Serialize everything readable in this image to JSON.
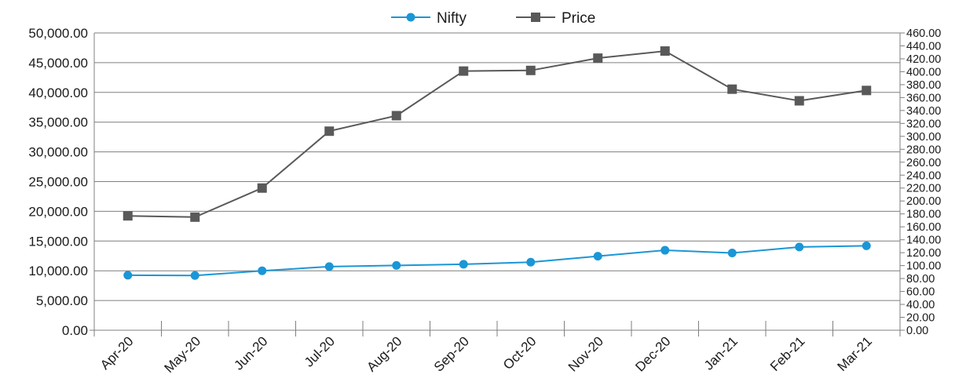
{
  "chart_data": {
    "type": "line",
    "categories": [
      "Apr-20",
      "May-20",
      "Jun-20",
      "Jul-20",
      "Aug-20",
      "Sep-20",
      "Oct-20",
      "Nov-20",
      "Dec-20",
      "Jan-21",
      "Feb-21",
      "Mar-21"
    ],
    "series": [
      {
        "name": "Nifty",
        "axis": "left",
        "color": "#1b96d6",
        "marker": "circle",
        "values": [
          9250,
          9200,
          10000,
          10700,
          10900,
          11100,
          11450,
          12450,
          13450,
          13000,
          14000,
          14200
        ]
      },
      {
        "name": "Price",
        "axis": "right",
        "color": "#595959",
        "marker": "square",
        "values": [
          177,
          175,
          220,
          308,
          332,
          401,
          402,
          421,
          432,
          373,
          355,
          371
        ]
      }
    ],
    "y_left": {
      "ylim": [
        0,
        50000
      ],
      "ticks": [
        "0.00",
        "5,000.00",
        "10,000.00",
        "15,000.00",
        "20,000.00",
        "25,000.00",
        "30,000.00",
        "35,000.00",
        "40,000.00",
        "45,000.00",
        "50,000.00"
      ]
    },
    "y_right": {
      "ylim": [
        0,
        460
      ],
      "ticks": [
        "0.00",
        "20.00",
        "40.00",
        "60.00",
        "80.00",
        "100.00",
        "120.00",
        "140.00",
        "160.00",
        "180.00",
        "200.00",
        "220.00",
        "240.00",
        "260.00",
        "280.00",
        "300.00",
        "320.00",
        "340.00",
        "360.00",
        "380.00",
        "400.00",
        "420.00",
        "440.00",
        "460.00"
      ]
    },
    "grid": true,
    "legend_position": "top-center"
  }
}
